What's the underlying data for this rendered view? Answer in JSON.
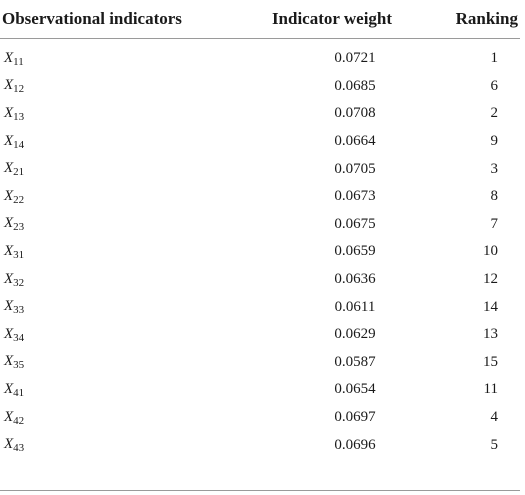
{
  "table": {
    "headers": {
      "indicator": "Observational indicators",
      "weight": "Indicator weight",
      "ranking": "Ranking"
    },
    "rows": [
      {
        "var": "X",
        "sub": "11",
        "weight": "0.0721",
        "rank": "1"
      },
      {
        "var": "X",
        "sub": "12",
        "weight": "0.0685",
        "rank": "6"
      },
      {
        "var": "X",
        "sub": "13",
        "weight": "0.0708",
        "rank": "2"
      },
      {
        "var": "X",
        "sub": "14",
        "weight": "0.0664",
        "rank": "9"
      },
      {
        "var": "X",
        "sub": "21",
        "weight": "0.0705",
        "rank": "3"
      },
      {
        "var": "X",
        "sub": "22",
        "weight": "0.0673",
        "rank": "8"
      },
      {
        "var": "X",
        "sub": "23",
        "weight": "0.0675",
        "rank": "7"
      },
      {
        "var": "X",
        "sub": "31",
        "weight": "0.0659",
        "rank": "10"
      },
      {
        "var": "X",
        "sub": "32",
        "weight": "0.0636",
        "rank": "12"
      },
      {
        "var": "X",
        "sub": "33",
        "weight": "0.0611",
        "rank": "14"
      },
      {
        "var": "X",
        "sub": "34",
        "weight": "0.0629",
        "rank": "13"
      },
      {
        "var": "X",
        "sub": "35",
        "weight": "0.0587",
        "rank": "15"
      },
      {
        "var": "X",
        "sub": "41",
        "weight": "0.0654",
        "rank": "11"
      },
      {
        "var": "X",
        "sub": "42",
        "weight": "0.0697",
        "rank": "4"
      },
      {
        "var": "X",
        "sub": "43",
        "weight": "0.0696",
        "rank": "5"
      }
    ]
  }
}
